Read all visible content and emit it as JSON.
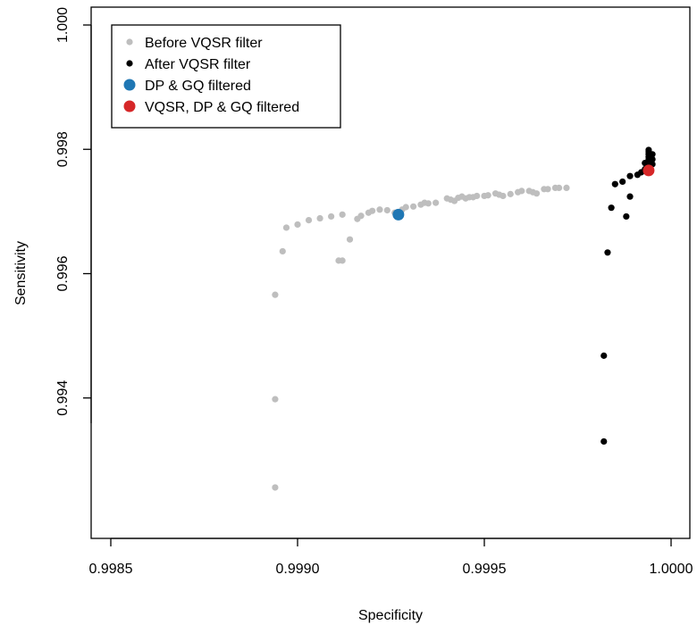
{
  "chart_data": {
    "type": "scatter",
    "title": "",
    "xlabel": "Specificity",
    "ylabel": "Sensitivity",
    "xlim": [
      0.9985,
      1.0
    ],
    "ylim": [
      0.9921,
      1.0
    ],
    "x_ticks": [
      0.9985,
      0.999,
      0.9995,
      1.0
    ],
    "x_tick_labels": [
      "0.9985",
      "0.9990",
      "0.9995",
      "1.0000"
    ],
    "y_ticks": [
      0.994,
      0.996,
      0.998,
      1.0
    ],
    "y_tick_labels": [
      "0.994",
      "0.996",
      "0.998",
      "1.000"
    ],
    "grid": false,
    "legend_position": "top-left",
    "series": [
      {
        "name": "Before VQSR filter",
        "color": "#bebebe",
        "marker_size": "small",
        "points": [
          [
            0.99894,
            0.99256
          ],
          [
            0.99894,
            0.99398
          ],
          [
            0.99894,
            0.99566
          ],
          [
            0.99896,
            0.99636
          ],
          [
            0.99897,
            0.99674
          ],
          [
            0.999,
            0.99679
          ],
          [
            0.99903,
            0.99686
          ],
          [
            0.99906,
            0.99689
          ],
          [
            0.99909,
            0.99692
          ],
          [
            0.99912,
            0.99695
          ],
          [
            0.99911,
            0.99621
          ],
          [
            0.99912,
            0.99621
          ],
          [
            0.99914,
            0.99655
          ],
          [
            0.99916,
            0.99688
          ],
          [
            0.99917,
            0.99693
          ],
          [
            0.99919,
            0.99698
          ],
          [
            0.9992,
            0.99701
          ],
          [
            0.99922,
            0.99703
          ],
          [
            0.99924,
            0.99702
          ],
          [
            0.99926,
            0.99698
          ],
          [
            0.99928,
            0.99703
          ],
          [
            0.99929,
            0.99707
          ],
          [
            0.99931,
            0.99708
          ],
          [
            0.99933,
            0.99711
          ],
          [
            0.99934,
            0.99714
          ],
          [
            0.99935,
            0.99713
          ],
          [
            0.99937,
            0.99714
          ],
          [
            0.9994,
            0.99721
          ],
          [
            0.99941,
            0.99719
          ],
          [
            0.99942,
            0.99717
          ],
          [
            0.99943,
            0.99722
          ],
          [
            0.99944,
            0.99724
          ],
          [
            0.99945,
            0.99721
          ],
          [
            0.99946,
            0.99723
          ],
          [
            0.99947,
            0.99723
          ],
          [
            0.99948,
            0.99725
          ],
          [
            0.9995,
            0.99725
          ],
          [
            0.99951,
            0.99726
          ],
          [
            0.99953,
            0.99729
          ],
          [
            0.99954,
            0.99727
          ],
          [
            0.99955,
            0.99725
          ],
          [
            0.99957,
            0.99728
          ],
          [
            0.99959,
            0.99731
          ],
          [
            0.9996,
            0.99733
          ],
          [
            0.99962,
            0.99733
          ],
          [
            0.99963,
            0.99731
          ],
          [
            0.99964,
            0.99729
          ],
          [
            0.99966,
            0.99736
          ],
          [
            0.99967,
            0.99736
          ],
          [
            0.99969,
            0.99738
          ],
          [
            0.9997,
            0.99738
          ],
          [
            0.99972,
            0.99738
          ]
        ]
      },
      {
        "name": "After VQSR filter",
        "color": "#000000",
        "marker_size": "small",
        "points": [
          [
            0.99982,
            0.9933
          ],
          [
            0.99982,
            0.99468
          ],
          [
            0.99983,
            0.99634
          ],
          [
            0.99984,
            0.99706
          ],
          [
            0.99988,
            0.99692
          ],
          [
            0.99989,
            0.99724
          ],
          [
            0.99985,
            0.99744
          ],
          [
            0.99987,
            0.99748
          ],
          [
            0.99989,
            0.99757
          ],
          [
            0.99991,
            0.99759
          ],
          [
            0.99992,
            0.99763
          ],
          [
            0.99993,
            0.99766
          ],
          [
            0.99993,
            0.99768
          ],
          [
            0.99993,
            0.99778
          ],
          [
            0.99994,
            0.9978
          ],
          [
            0.99994,
            0.99784
          ],
          [
            0.99994,
            0.99788
          ],
          [
            0.99994,
            0.99792
          ],
          [
            0.99994,
            0.99796
          ],
          [
            0.99994,
            0.99799
          ],
          [
            0.99995,
            0.99776
          ],
          [
            0.99995,
            0.99784
          ],
          [
            0.99995,
            0.99792
          ]
        ]
      },
      {
        "name": "DP & GQ filtered",
        "color": "#1f77b4",
        "marker_size": "large",
        "points": [
          [
            0.99927,
            0.99695
          ]
        ]
      },
      {
        "name": "VQSR, DP & GQ filtered",
        "color": "#d62728",
        "marker_size": "large",
        "points": [
          [
            0.99994,
            0.99766
          ]
        ]
      }
    ]
  }
}
